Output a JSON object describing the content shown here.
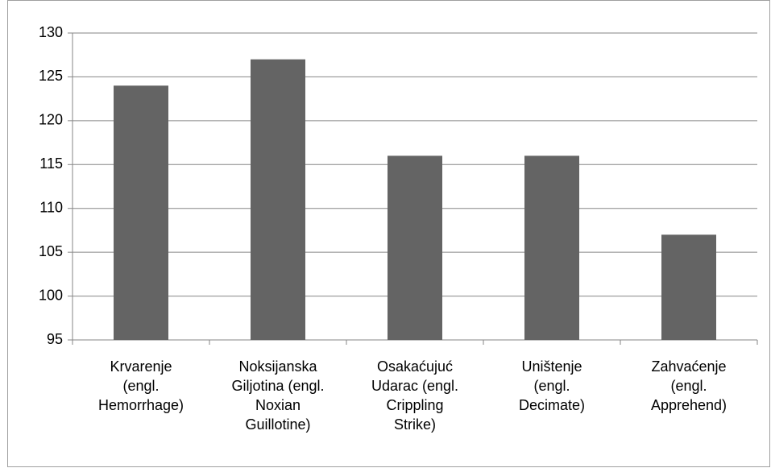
{
  "chart_data": {
    "type": "bar",
    "categories": [
      "Krvarenje\n(engl.\nHemorrhage)",
      "Noksijanska\nGiljotina (engl.\nNoxian\nGuillotine)",
      "Osakaćujuć\nUdarac (engl.\nCrippling\nStrike)",
      "Uništenje\n(engl.\nDecimate)",
      "Zahvaćenje\n(engl.\nApprehend)"
    ],
    "values": [
      124,
      127,
      116,
      116,
      107
    ],
    "color": "#646464",
    "ylim": [
      95,
      130
    ],
    "yticks": [
      95,
      100,
      105,
      110,
      115,
      120,
      125,
      130
    ],
    "grid": true
  }
}
